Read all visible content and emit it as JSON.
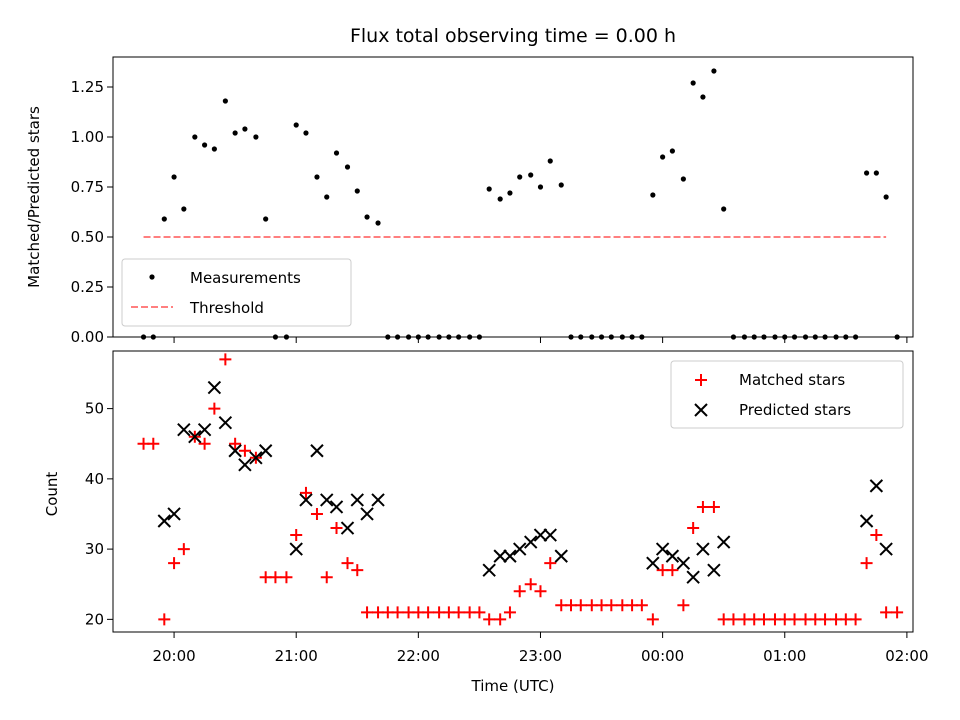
{
  "chart_data": [
    {
      "type": "scatter",
      "title": "Flux total observing time = 0.00 h",
      "xlabel": "",
      "ylabel": "Matched/Predicted stars",
      "x_ticks": [
        "20:00",
        "21:00",
        "22:00",
        "23:00",
        "00:00",
        "01:00",
        "02:00"
      ],
      "yticks": [
        "0.00",
        "0.25",
        "0.50",
        "0.75",
        "1.00",
        "1.25"
      ],
      "ylim": [
        0,
        1.4
      ],
      "legend_position": "lower-left",
      "series": [
        {
          "name": "Measurements",
          "color": "#000000",
          "marker": "dot",
          "points": [
            [
              19.75,
              0
            ],
            [
              19.83,
              0
            ],
            [
              19.92,
              0.59
            ],
            [
              20.0,
              0.8
            ],
            [
              20.08,
              0.64
            ],
            [
              20.17,
              1.0
            ],
            [
              20.25,
              0.96
            ],
            [
              20.33,
              0.94
            ],
            [
              20.42,
              1.18
            ],
            [
              20.5,
              1.02
            ],
            [
              20.58,
              1.04
            ],
            [
              20.67,
              1.0
            ],
            [
              20.75,
              0.59
            ],
            [
              20.83,
              0
            ],
            [
              20.92,
              0
            ],
            [
              21.0,
              1.06
            ],
            [
              21.08,
              1.02
            ],
            [
              21.17,
              0.8
            ],
            [
              21.25,
              0.7
            ],
            [
              21.33,
              0.92
            ],
            [
              21.42,
              0.85
            ],
            [
              21.5,
              0.73
            ],
            [
              21.58,
              0.6
            ],
            [
              21.67,
              0.57
            ],
            [
              21.75,
              0
            ],
            [
              21.83,
              0
            ],
            [
              21.92,
              0
            ],
            [
              22.0,
              0
            ],
            [
              22.08,
              0
            ],
            [
              22.17,
              0
            ],
            [
              22.25,
              0
            ],
            [
              22.33,
              0
            ],
            [
              22.42,
              0
            ],
            [
              22.5,
              0
            ],
            [
              22.58,
              0.74
            ],
            [
              22.67,
              0.69
            ],
            [
              22.75,
              0.72
            ],
            [
              22.83,
              0.8
            ],
            [
              22.92,
              0.81
            ],
            [
              23.0,
              0.75
            ],
            [
              23.08,
              0.88
            ],
            [
              23.17,
              0.76
            ],
            [
              23.25,
              0
            ],
            [
              23.33,
              0
            ],
            [
              23.42,
              0
            ],
            [
              23.5,
              0
            ],
            [
              23.58,
              0
            ],
            [
              23.67,
              0
            ],
            [
              23.75,
              0
            ],
            [
              23.83,
              0
            ],
            [
              23.92,
              0.71
            ],
            [
              24.0,
              0.9
            ],
            [
              24.08,
              0.93
            ],
            [
              24.17,
              0.79
            ],
            [
              24.25,
              1.27
            ],
            [
              24.33,
              1.2
            ],
            [
              24.42,
              1.33
            ],
            [
              24.5,
              0.64
            ],
            [
              24.58,
              0
            ],
            [
              24.67,
              0
            ],
            [
              24.75,
              0
            ],
            [
              24.83,
              0
            ],
            [
              24.92,
              0
            ],
            [
              25.0,
              0
            ],
            [
              25.08,
              0
            ],
            [
              25.17,
              0
            ],
            [
              25.25,
              0
            ],
            [
              25.33,
              0
            ],
            [
              25.42,
              0
            ],
            [
              25.5,
              0
            ],
            [
              25.58,
              0
            ],
            [
              25.67,
              0.82
            ],
            [
              25.75,
              0.82
            ],
            [
              25.83,
              0.7
            ],
            [
              25.92,
              0
            ]
          ]
        },
        {
          "name": "Threshold",
          "color": "#ff7f7f",
          "style": "dashed",
          "points": [
            [
              19.75,
              0.5
            ],
            [
              25.83,
              0.5
            ]
          ]
        }
      ]
    },
    {
      "type": "scatter",
      "title": "",
      "xlabel": "Time (UTC)",
      "ylabel": "Count",
      "x_ticks": [
        "20:00",
        "21:00",
        "22:00",
        "23:00",
        "00:00",
        "01:00",
        "02:00"
      ],
      "yticks": [
        "20",
        "30",
        "40",
        "50"
      ],
      "xlim": [
        19.5,
        26.05
      ],
      "ylim": [
        18.2,
        58.2
      ],
      "legend_position": "upper-right",
      "series": [
        {
          "name": "Matched stars",
          "color": "#ff0000",
          "marker": "plus",
          "points": [
            [
              19.75,
              45
            ],
            [
              19.83,
              45
            ],
            [
              19.92,
              20
            ],
            [
              20.0,
              28
            ],
            [
              20.08,
              30
            ],
            [
              20.17,
              46
            ],
            [
              20.25,
              45
            ],
            [
              20.33,
              50
            ],
            [
              20.42,
              57
            ],
            [
              20.5,
              45
            ],
            [
              20.58,
              44
            ],
            [
              20.67,
              43
            ],
            [
              20.75,
              26
            ],
            [
              20.83,
              26
            ],
            [
              20.92,
              26
            ],
            [
              21.0,
              32
            ],
            [
              21.08,
              38
            ],
            [
              21.17,
              35
            ],
            [
              21.25,
              26
            ],
            [
              21.33,
              33
            ],
            [
              21.42,
              28
            ],
            [
              21.5,
              27
            ],
            [
              21.58,
              21
            ],
            [
              21.67,
              21
            ],
            [
              21.75,
              21
            ],
            [
              21.83,
              21
            ],
            [
              21.92,
              21
            ],
            [
              22.0,
              21
            ],
            [
              22.08,
              21
            ],
            [
              22.17,
              21
            ],
            [
              22.25,
              21
            ],
            [
              22.33,
              21
            ],
            [
              22.42,
              21
            ],
            [
              22.5,
              21
            ],
            [
              22.58,
              20
            ],
            [
              22.67,
              20
            ],
            [
              22.75,
              21
            ],
            [
              22.83,
              24
            ],
            [
              22.92,
              25
            ],
            [
              23.0,
              24
            ],
            [
              23.08,
              28
            ],
            [
              23.17,
              22
            ],
            [
              23.25,
              22
            ],
            [
              23.33,
              22
            ],
            [
              23.42,
              22
            ],
            [
              23.5,
              22
            ],
            [
              23.58,
              22
            ],
            [
              23.67,
              22
            ],
            [
              23.75,
              22
            ],
            [
              23.83,
              22
            ],
            [
              23.92,
              20
            ],
            [
              24.0,
              27
            ],
            [
              24.08,
              27
            ],
            [
              24.17,
              22
            ],
            [
              24.25,
              33
            ],
            [
              24.33,
              36
            ],
            [
              24.42,
              36
            ],
            [
              24.5,
              20
            ],
            [
              24.58,
              20
            ],
            [
              24.67,
              20
            ],
            [
              24.75,
              20
            ],
            [
              24.83,
              20
            ],
            [
              24.92,
              20
            ],
            [
              25.0,
              20
            ],
            [
              25.08,
              20
            ],
            [
              25.17,
              20
            ],
            [
              25.25,
              20
            ],
            [
              25.33,
              20
            ],
            [
              25.42,
              20
            ],
            [
              25.5,
              20
            ],
            [
              25.58,
              20
            ],
            [
              25.67,
              28
            ],
            [
              25.75,
              32
            ],
            [
              25.83,
              21
            ],
            [
              25.92,
              21
            ]
          ]
        },
        {
          "name": "Predicted stars",
          "color": "#000000",
          "marker": "x",
          "points": [
            [
              19.92,
              34
            ],
            [
              20.0,
              35
            ],
            [
              20.08,
              47
            ],
            [
              20.17,
              46
            ],
            [
              20.25,
              47
            ],
            [
              20.33,
              53
            ],
            [
              20.42,
              48
            ],
            [
              20.5,
              44
            ],
            [
              20.58,
              42
            ],
            [
              20.67,
              43
            ],
            [
              20.75,
              44
            ],
            [
              21.0,
              30
            ],
            [
              21.08,
              37
            ],
            [
              21.17,
              44
            ],
            [
              21.25,
              37
            ],
            [
              21.33,
              36
            ],
            [
              21.42,
              33
            ],
            [
              21.5,
              37
            ],
            [
              21.58,
              35
            ],
            [
              21.67,
              37
            ],
            [
              22.58,
              27
            ],
            [
              22.67,
              29
            ],
            [
              22.75,
              29
            ],
            [
              22.83,
              30
            ],
            [
              22.92,
              31
            ],
            [
              23.0,
              32
            ],
            [
              23.08,
              32
            ],
            [
              23.17,
              29
            ],
            [
              23.92,
              28
            ],
            [
              24.0,
              30
            ],
            [
              24.08,
              29
            ],
            [
              24.17,
              28
            ],
            [
              24.25,
              26
            ],
            [
              24.33,
              30
            ],
            [
              24.42,
              27
            ],
            [
              24.5,
              31
            ],
            [
              25.67,
              34
            ],
            [
              25.75,
              39
            ],
            [
              25.83,
              30
            ]
          ]
        }
      ]
    }
  ]
}
